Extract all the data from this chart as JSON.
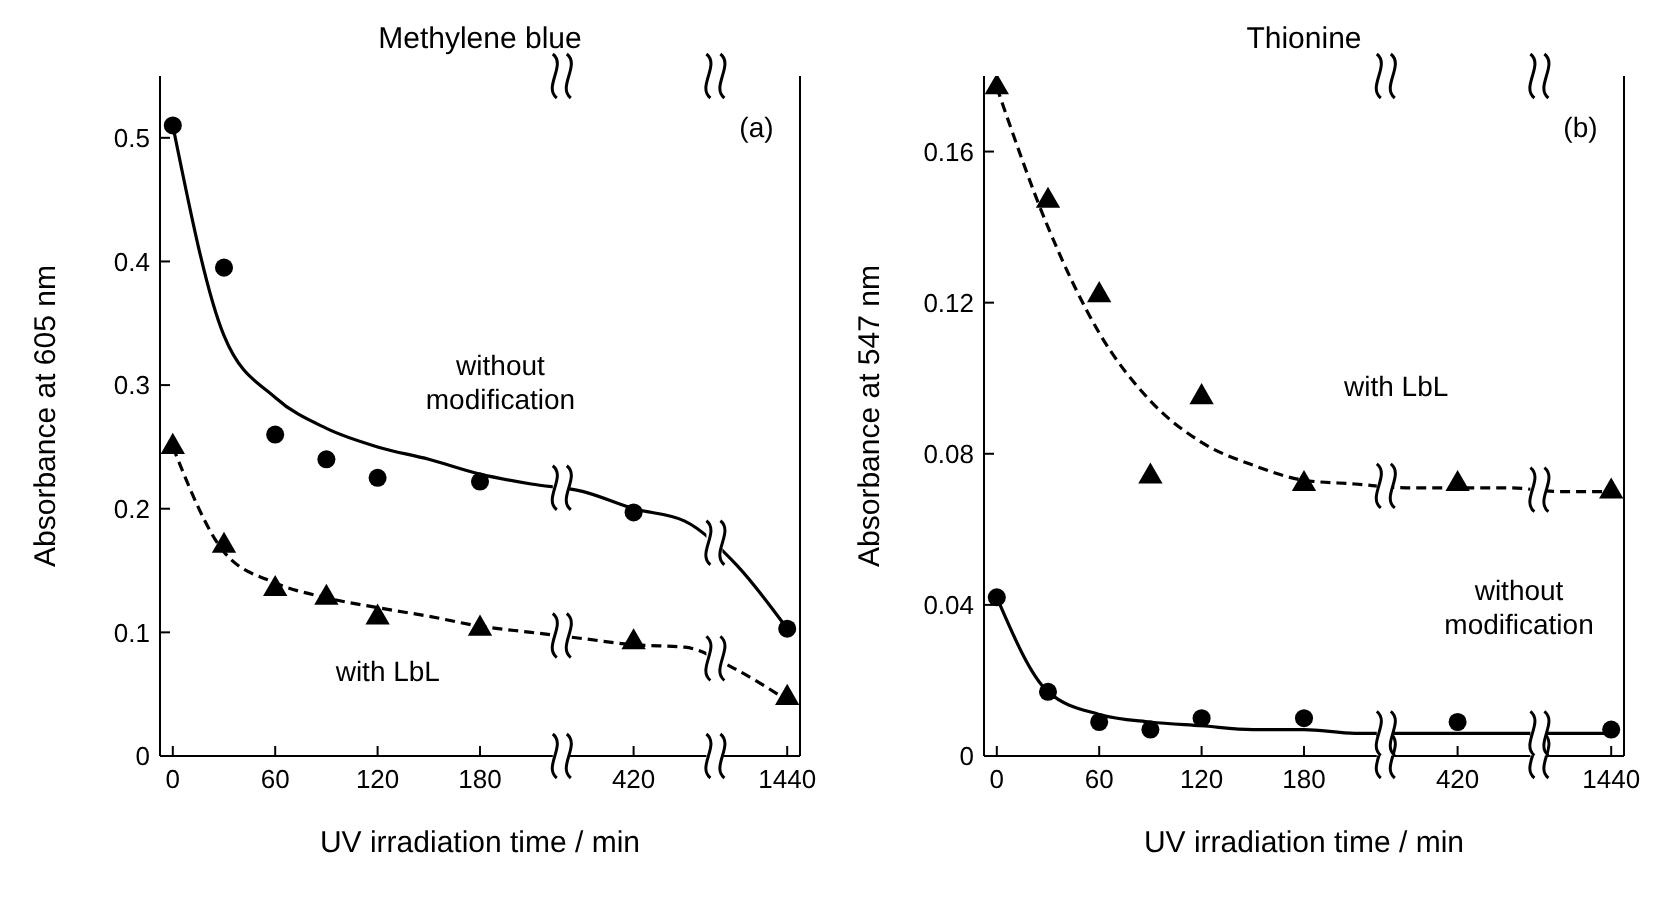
{
  "chart_data": [
    {
      "type": "scatter",
      "title": "Methylene blue",
      "xlabel": "UV irradiation time / min",
      "ylabel": "Absorbance at 605 nm",
      "categories": [
        "0",
        null,
        "60",
        null,
        "120",
        null,
        "180",
        null,
        null,
        "420",
        null,
        null,
        "1440"
      ],
      "ylim": [
        0,
        0.55
      ],
      "yticks": [
        0,
        0.1,
        0.2,
        0.3,
        0.4,
        0.5
      ],
      "annotations": [
        "(a)",
        "without modification",
        "with LbL"
      ],
      "series": [
        {
          "type": "scatter",
          "marker": "circle",
          "color": "#000000",
          "values": [
            0.51,
            0.395,
            0.26,
            0.24,
            0.225,
            null,
            0.222,
            null,
            null,
            0.197,
            null,
            null,
            0.103
          ]
        },
        {
          "type": "scatter",
          "marker": "triangle",
          "color": "#000000",
          "values": [
            0.25,
            0.17,
            0.135,
            0.128,
            0.112,
            null,
            0.103,
            null,
            null,
            0.092,
            null,
            null,
            0.047
          ]
        },
        {
          "type": "line",
          "line_style": "solid",
          "color": "#000000",
          "values": [
            0.51,
            0.34,
            0.29,
            0.265,
            0.25,
            0.24,
            0.228,
            0.22,
            0.214,
            0.2,
            0.19,
            0.155,
            0.103
          ]
        },
        {
          "type": "line",
          "line_style": "dashed",
          "color": "#000000",
          "values": [
            0.25,
            0.165,
            0.14,
            0.128,
            0.12,
            0.113,
            0.105,
            0.1,
            0.095,
            0.09,
            0.088,
            0.07,
            0.045
          ]
        }
      ]
    },
    {
      "type": "scatter",
      "title": "Thionine",
      "xlabel": "UV irradiation time / min",
      "ylabel": "Absorbance at 547 nm",
      "categories": [
        "0",
        null,
        "60",
        null,
        "120",
        null,
        "180",
        null,
        null,
        "420",
        null,
        null,
        "1440"
      ],
      "ylim": [
        0,
        0.18
      ],
      "yticks": [
        0,
        0.04,
        0.08,
        0.12,
        0.16
      ],
      "annotations": [
        "(b)",
        "with LbL",
        "without modification"
      ],
      "series": [
        {
          "type": "scatter",
          "marker": "triangle",
          "color": "#000000",
          "values": [
            0.177,
            0.147,
            0.122,
            0.074,
            0.095,
            null,
            0.072,
            null,
            null,
            0.072,
            null,
            null,
            0.07
          ]
        },
        {
          "type": "scatter",
          "marker": "circle",
          "color": "#000000",
          "values": [
            0.042,
            0.017,
            0.009,
            0.007,
            0.01,
            null,
            0.01,
            null,
            null,
            0.009,
            null,
            null,
            0.007
          ]
        },
        {
          "type": "line",
          "line_style": "dashed",
          "color": "#000000",
          "values": [
            0.177,
            0.14,
            0.112,
            0.094,
            0.083,
            0.077,
            0.073,
            0.072,
            0.071,
            0.071,
            0.071,
            0.07,
            0.07
          ]
        },
        {
          "type": "line",
          "line_style": "solid",
          "color": "#000000",
          "values": [
            0.042,
            0.017,
            0.011,
            0.009,
            0.008,
            0.007,
            0.007,
            0.006,
            0.006,
            0.006,
            0.006,
            0.006,
            0.006
          ]
        }
      ]
    }
  ]
}
